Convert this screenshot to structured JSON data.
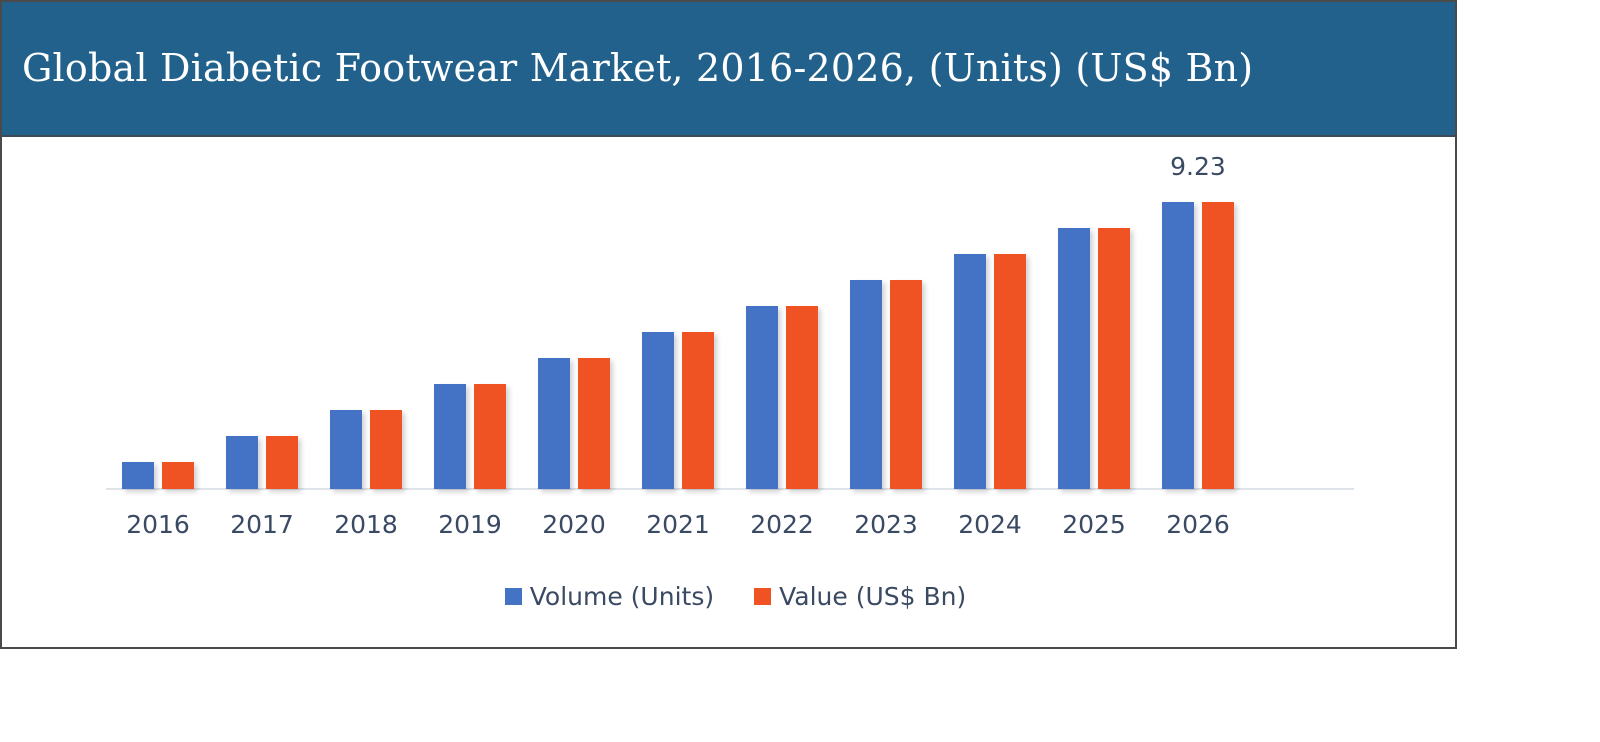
{
  "header": {
    "title": "Global Diabetic Footwear Market, 2016-2026, (Units) (US$ Bn)",
    "background_color": "#22618b"
  },
  "legend": {
    "items": [
      {
        "label": "Volume (Units)",
        "color": "#4472c4"
      },
      {
        "label": "Value (US$ Bn)",
        "color": "#f05323"
      }
    ]
  },
  "data_labels": {
    "last_value": "9.23"
  },
  "chart_data": {
    "type": "bar",
    "title": "Global Diabetic Footwear Market, 2016-2026, (Units) (US$ Bn)",
    "xlabel": "",
    "ylabel": "",
    "categories": [
      "2016",
      "2017",
      "2018",
      "2019",
      "2020",
      "2021",
      "2022",
      "2023",
      "2024",
      "2025",
      "2026"
    ],
    "series": [
      {
        "name": "Volume (Units)",
        "color": "#4472c4",
        "values": [
          0.87,
          1.7,
          2.54,
          3.38,
          4.21,
          5.05,
          5.89,
          6.72,
          7.56,
          8.39,
          9.23
        ]
      },
      {
        "name": "Value (US$ Bn)",
        "color": "#f05323",
        "values": [
          0.87,
          1.7,
          2.54,
          3.38,
          4.21,
          5.05,
          5.89,
          6.72,
          7.56,
          8.39,
          9.23
        ]
      }
    ],
    "annotations": [
      {
        "category": "2026",
        "text": "9.23"
      }
    ],
    "ylim": [
      0,
      9.23
    ],
    "grid": false,
    "y_axis_visible": false,
    "legend_position": "bottom"
  }
}
